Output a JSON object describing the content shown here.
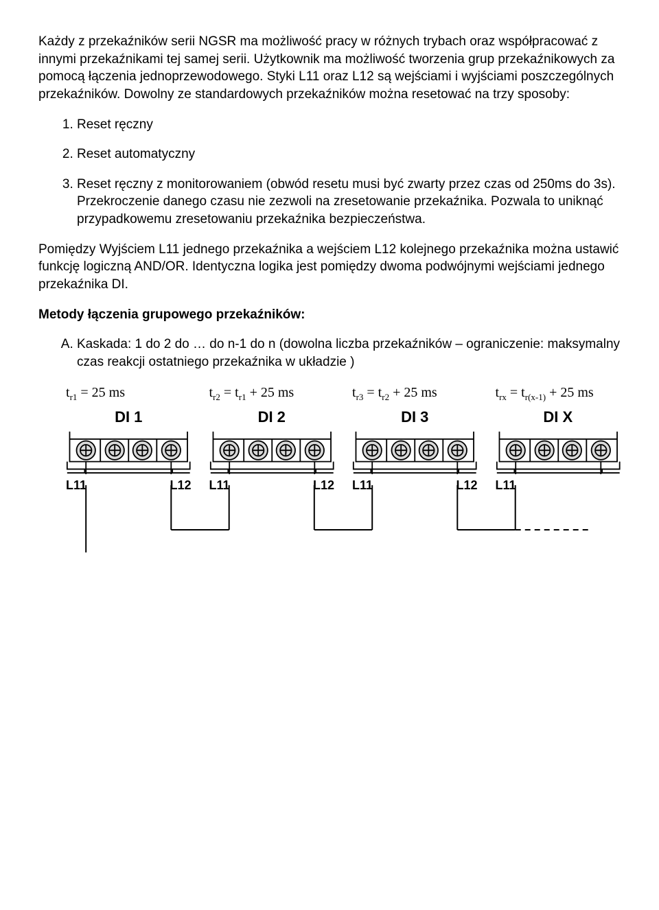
{
  "para1": "Każdy z przekaźników serii NGSR ma możliwość pracy w różnych trybach oraz współpracować z innymi przekaźnikami tej samej serii. Użytkownik ma możliwość tworzenia grup przekaźnikowych za pomocą łączenia jednoprzewodowego. Styki L11 oraz L12 są wejściami i wyjściami poszczególnych przekaźników. Dowolny ze standardowych przekaźników można resetować na trzy sposoby:",
  "reset_list": [
    "Reset ręczny",
    "Reset automatyczny",
    "Reset ręczny z monitorowaniem (obwód resetu musi być zwarty przez czas od 250ms do 3s). Przekroczenie danego czasu nie zezwoli na zresetowanie przekaźnika. Pozwala to uniknąć przypadkowemu zresetowaniu przekaźnika bezpieczeństwa."
  ],
  "para2": "Pomiędzy Wyjściem L11 jednego przekaźnika a wejściem L12 kolejnego przekaźnika można ustawić funkcję logiczną AND/OR. Identyczna logika jest pomiędzy dwoma podwójnymi wejściami jednego przekaźnika DI.",
  "heading": "Metody łączenia grupowego przekaźników:",
  "method_list": [
    "Kaskada: 1 do 2 do … do n-1 do n (dowolna liczba przekaźników – ograniczenie: maksymalny czas reakcji ostatniego przekaźnika w układzie )"
  ],
  "diagram": {
    "relays": [
      {
        "timing_html": "t<sub>r1</sub> = 25 ms",
        "name": "DI 1",
        "left": "L11",
        "right": "L12"
      },
      {
        "timing_html": "t<sub>r2</sub> = t<sub>r1</sub> + 25 ms",
        "name": "DI 2",
        "left": "L11",
        "right": "L12"
      },
      {
        "timing_html": "t<sub>r3</sub> = t<sub>r2</sub> + 25 ms",
        "name": "DI 3",
        "left": "L11",
        "right": "L12"
      },
      {
        "timing_html": "t<sub>rx</sub> = t<sub>r(x-1)</sub> + 25 ms",
        "name": "DI X",
        "left": "L11",
        "right": ""
      }
    ],
    "colors": {
      "stroke": "#000000",
      "fill_body": "#ffffff",
      "fill_screw": "#d9d9d9"
    },
    "stroke_width": 2
  }
}
